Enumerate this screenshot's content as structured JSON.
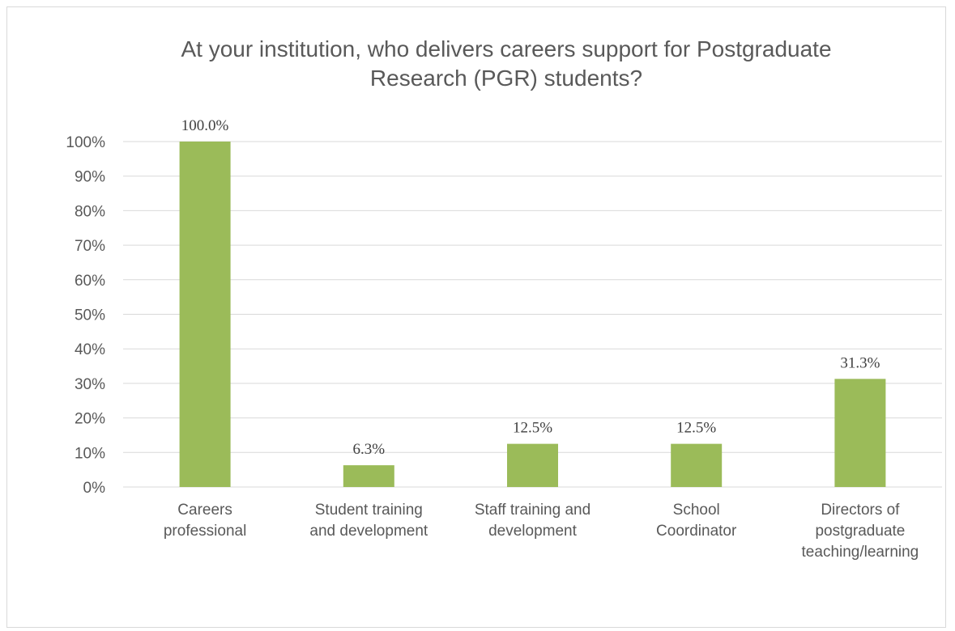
{
  "chart_data": {
    "type": "bar",
    "title_lines": [
      "At your institution, who delivers careers support for Postgraduate",
      "Research (PGR) students?"
    ],
    "categories": [
      [
        "Careers",
        "professional"
      ],
      [
        "Student training",
        "and development"
      ],
      [
        "Staff training and",
        "development"
      ],
      [
        "School",
        "Coordinator"
      ],
      [
        "Directors of",
        "postgraduate",
        "teaching/learning"
      ]
    ],
    "values": [
      100.0,
      6.3,
      12.5,
      12.5,
      31.3
    ],
    "data_labels": [
      "100.0%",
      "6.3%",
      "12.5%",
      "12.5%",
      "31.3%"
    ],
    "ylim": [
      0,
      100
    ],
    "y_ticks": [
      0,
      10,
      20,
      30,
      40,
      50,
      60,
      70,
      80,
      90,
      100
    ],
    "y_tick_labels": [
      "0%",
      "10%",
      "20%",
      "30%",
      "40%",
      "50%",
      "60%",
      "70%",
      "80%",
      "90%",
      "100%"
    ],
    "grid": true,
    "bar_color": "#9bbb59"
  }
}
